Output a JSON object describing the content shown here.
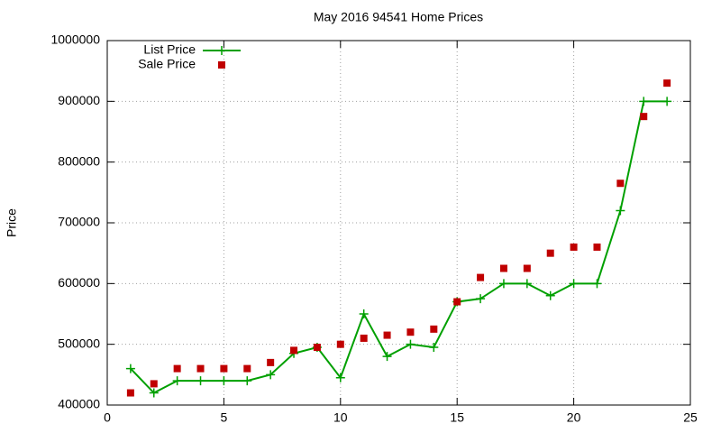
{
  "chart_data": {
    "type": "line",
    "title": "May 2016 94541 Home Prices",
    "y_label": "Price",
    "x": [
      1,
      2,
      3,
      4,
      5,
      6,
      7,
      8,
      9,
      10,
      11,
      12,
      13,
      14,
      15,
      16,
      17,
      18,
      19,
      20,
      21,
      22,
      23,
      24
    ],
    "series": [
      {
        "name": "List Price",
        "color": "#00a000",
        "mode": "lines+markers",
        "values": [
          460000,
          420000,
          440000,
          440000,
          440000,
          440000,
          450000,
          485000,
          495000,
          445000,
          550000,
          480000,
          500000,
          495000,
          570000,
          575000,
          600000,
          600000,
          580000,
          600000,
          600000,
          720000,
          900000,
          900000
        ]
      },
      {
        "name": "Sale Price",
        "color": "#c00000",
        "mode": "markers",
        "values": [
          420000,
          435000,
          460000,
          460000,
          460000,
          460000,
          470000,
          490000,
          495000,
          500000,
          510000,
          515000,
          520000,
          525000,
          570000,
          610000,
          625000,
          625000,
          650000,
          660000,
          660000,
          765000,
          875000,
          930000
        ]
      }
    ],
    "xlim": [
      0,
      25
    ],
    "xticks": [
      0,
      5,
      10,
      15,
      20,
      25
    ],
    "ylim": [
      400000,
      1000000
    ],
    "yticks": [
      400000,
      500000,
      600000,
      700000,
      800000,
      900000,
      1000000
    ],
    "grid": true,
    "legend": "top-left"
  }
}
